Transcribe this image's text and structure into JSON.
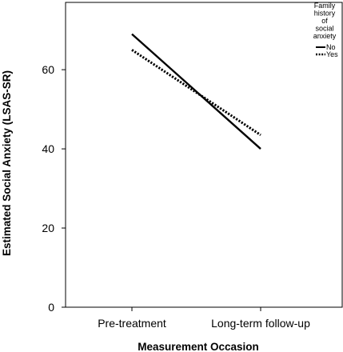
{
  "chart_data": {
    "type": "line",
    "categories": [
      "Pre-treatment",
      "Long-term follow-up"
    ],
    "series": [
      {
        "name": "No",
        "values": [
          69,
          40
        ],
        "style": "solid"
      },
      {
        "name": "Yes",
        "values": [
          65,
          43.5
        ],
        "style": "dotted"
      }
    ],
    "xlabel": "Measurement Occasion",
    "ylabel": "Estimated Social Anxiety (LSAS-SR)",
    "ylim": [
      0,
      77
    ],
    "yticks": [
      0,
      20,
      40,
      60
    ],
    "grid": false,
    "legend": {
      "title_lines": [
        "Family",
        "history",
        "of",
        "social",
        "anxiety"
      ],
      "placement": "top-right"
    },
    "colors": {
      "line": "#000000",
      "axis": "#000000"
    }
  }
}
